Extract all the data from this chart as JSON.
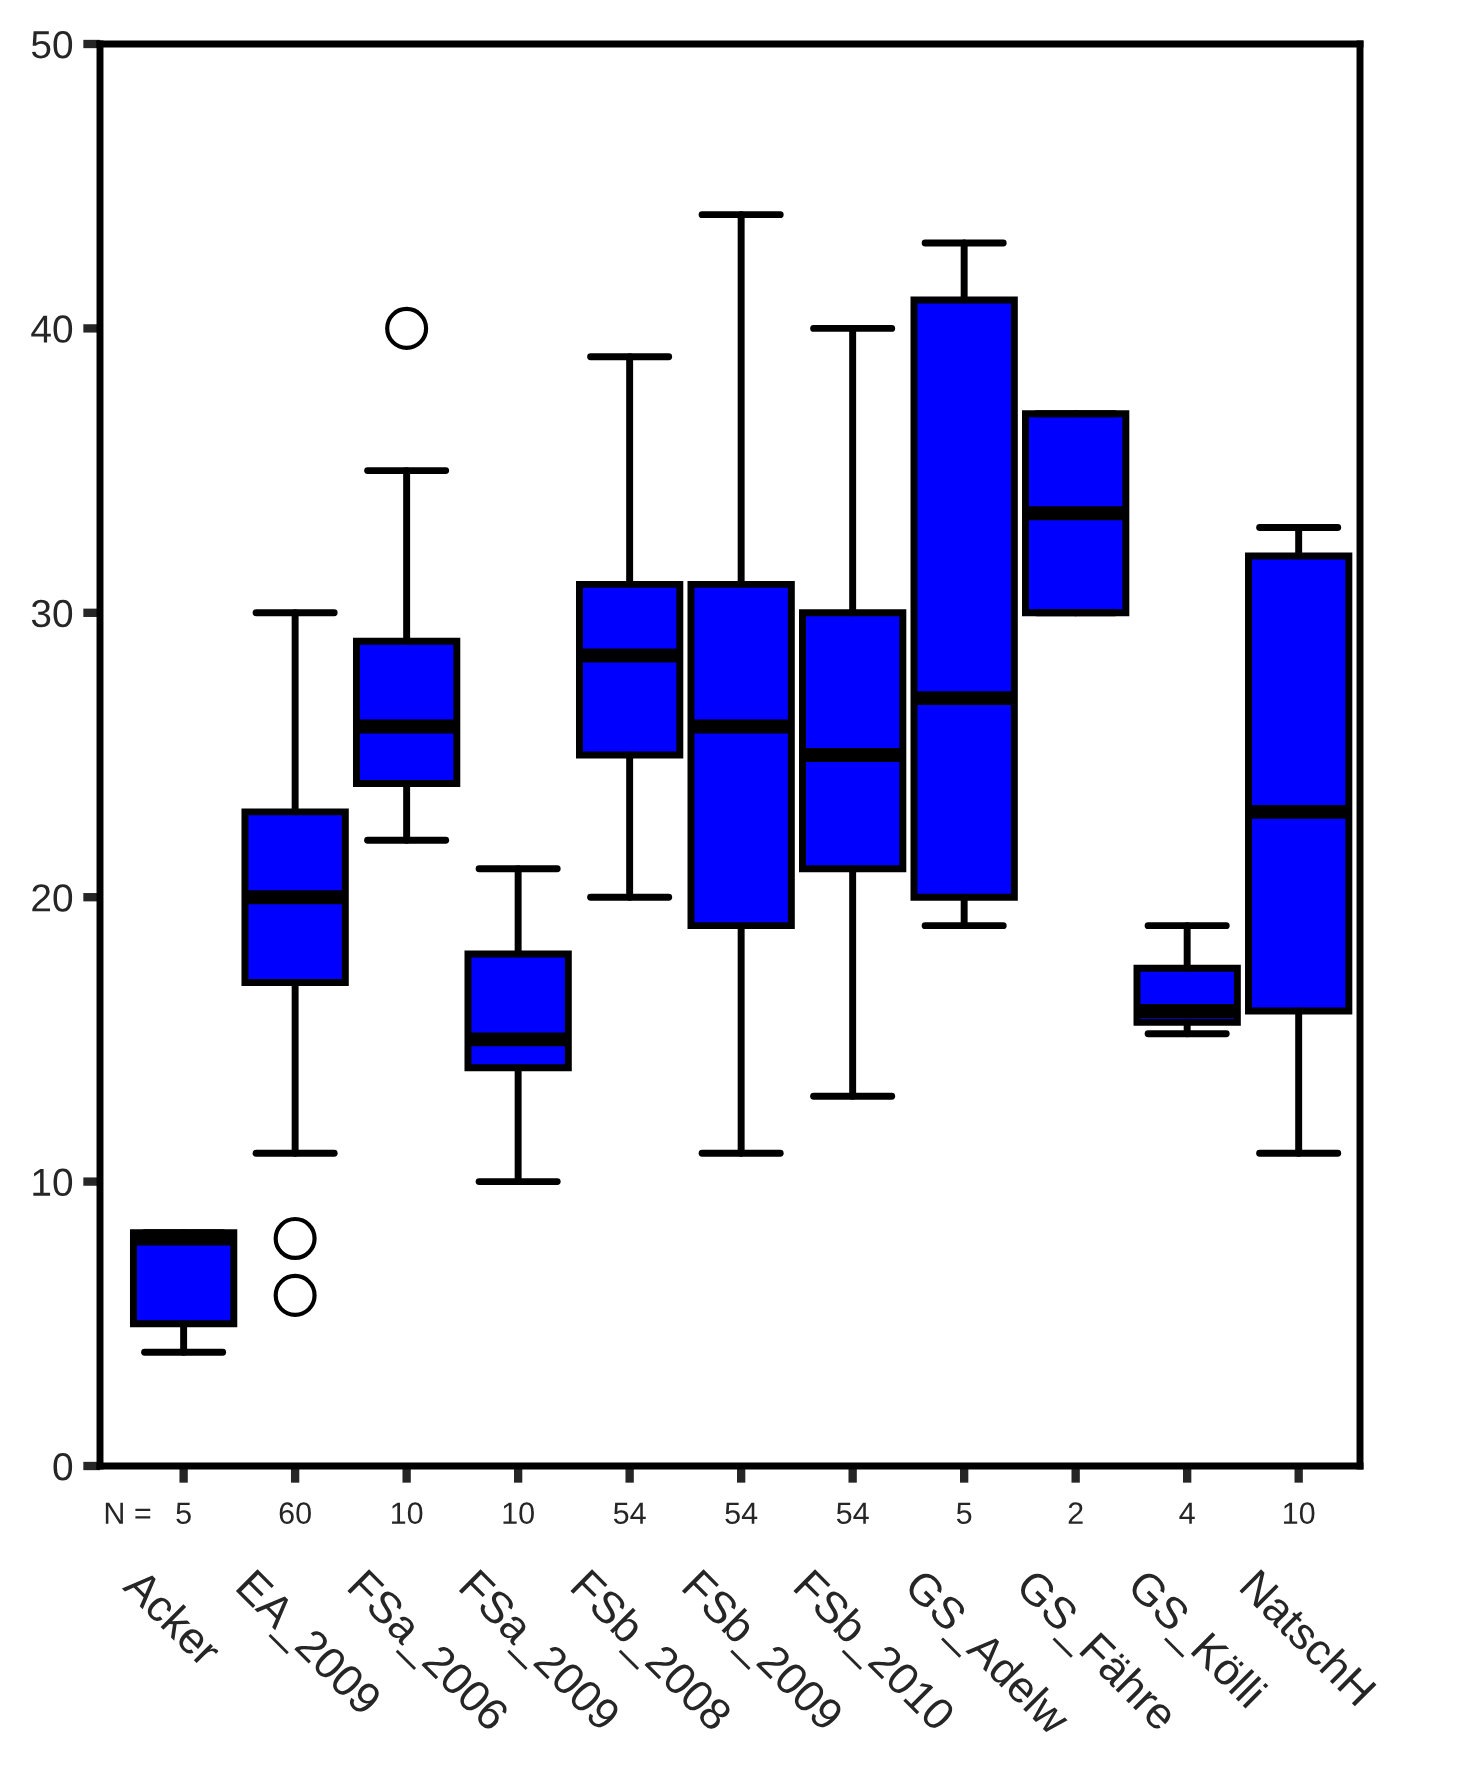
{
  "chart_data": {
    "type": "box",
    "categories": [
      "Acker",
      "EA_2009",
      "FSa_2006",
      "FSa_2009",
      "FSb_2008",
      "FSb_2009",
      "FSb_2010",
      "GS_Adelw",
      "GS_Fähre",
      "GS_Kölli",
      "NatschH"
    ],
    "color": "#0000ff",
    "boxes": [
      {
        "low": 4,
        "q1": 5,
        "median": 8,
        "q3": 8.2,
        "high": 8.2
      },
      {
        "low": 11,
        "q1": 17,
        "median": 20,
        "q3": 23,
        "high": 30,
        "outliers": [
          8,
          6
        ]
      },
      {
        "low": 22,
        "q1": 24,
        "median": 26,
        "q3": 29,
        "high": 35,
        "outliers": [
          40
        ]
      },
      {
        "low": 10,
        "q1": 14,
        "median": 15,
        "q3": 18,
        "high": 21
      },
      {
        "low": 20,
        "q1": 25,
        "median": 28.5,
        "q3": 31,
        "high": 39
      },
      {
        "low": 11,
        "q1": 19,
        "median": 26,
        "q3": 31,
        "high": 44
      },
      {
        "low": 13,
        "q1": 21,
        "median": 25,
        "q3": 30,
        "high": 40
      },
      {
        "low": 19,
        "q1": 20,
        "median": 27,
        "q3": 41,
        "high": 43
      },
      {
        "low": 30,
        "q1": 30,
        "median": 33.5,
        "q3": 37,
        "high": 37
      },
      {
        "low": 15.2,
        "q1": 15.6,
        "median": 16,
        "q3": 17.5,
        "high": 19
      },
      {
        "low": 11,
        "q1": 16,
        "median": 23,
        "q3": 32,
        "high": 33
      }
    ],
    "annotations": [
      "N =",
      "5",
      "60",
      "10",
      "10",
      "54",
      "54",
      "54",
      "5",
      "2",
      "4",
      "10"
    ],
    "ylim": [
      0,
      50
    ],
    "yticks": [
      0,
      10,
      20,
      30,
      40,
      50
    ],
    "grid": false
  }
}
